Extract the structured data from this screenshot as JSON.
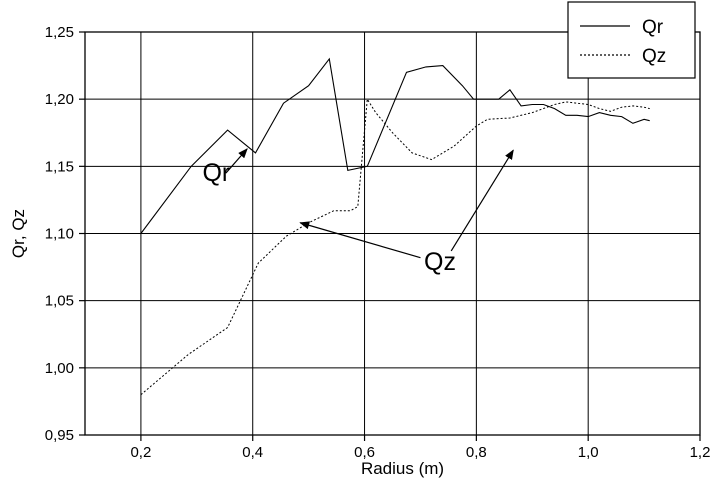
{
  "chart_data": {
    "type": "line",
    "title": "",
    "xlabel": "Radius (m)",
    "ylabel": "Qr, Qz",
    "xlim": [
      0.1,
      1.2
    ],
    "ylim": [
      0.95,
      1.25
    ],
    "grid": true,
    "legend_position": "top-right",
    "x_ticks": [
      "0,2",
      "0,4",
      "0,6",
      "0,8",
      "1,0",
      "1,2"
    ],
    "y_ticks": [
      "0,95",
      "1,00",
      "1,05",
      "1,10",
      "1,15",
      "1,20",
      "1,25"
    ],
    "series": [
      {
        "name": "Qr",
        "style": "solid",
        "x": [
          0.2,
          0.29,
          0.355,
          0.405,
          0.455,
          0.5,
          0.537,
          0.57,
          0.605,
          0.675,
          0.71,
          0.74,
          0.775,
          0.795,
          0.84,
          0.86,
          0.88,
          0.9,
          0.92,
          0.94,
          0.96,
          0.98,
          1.0,
          1.02,
          1.04,
          1.06,
          1.08,
          1.1,
          1.11
        ],
        "values": [
          1.1,
          1.15,
          1.177,
          1.16,
          1.197,
          1.21,
          1.23,
          1.147,
          1.15,
          1.22,
          1.224,
          1.225,
          1.21,
          1.2,
          1.2,
          1.207,
          1.195,
          1.196,
          1.196,
          1.193,
          1.188,
          1.188,
          1.187,
          1.19,
          1.188,
          1.187,
          1.182,
          1.185,
          1.184
        ]
      },
      {
        "name": "Qz",
        "style": "dotted",
        "x": [
          0.2,
          0.285,
          0.355,
          0.41,
          0.46,
          0.5,
          0.545,
          0.575,
          0.588,
          0.605,
          0.62,
          0.65,
          0.685,
          0.72,
          0.76,
          0.8,
          0.82,
          0.86,
          0.9,
          0.94,
          0.96,
          0.98,
          1.0,
          1.02,
          1.04,
          1.06,
          1.08,
          1.1,
          1.11
        ],
        "values": [
          0.98,
          1.01,
          1.03,
          1.078,
          1.098,
          1.108,
          1.117,
          1.117,
          1.12,
          1.2,
          1.19,
          1.175,
          1.16,
          1.155,
          1.165,
          1.18,
          1.185,
          1.186,
          1.19,
          1.196,
          1.198,
          1.197,
          1.196,
          1.193,
          1.191,
          1.194,
          1.195,
          1.194,
          1.193
        ]
      }
    ],
    "legend_items": [
      "Qr",
      "Qz"
    ],
    "annotations": [
      {
        "text": "Qr",
        "label_at": [
          0.335,
          1.139
        ],
        "arrow_from": [
          0.352,
          1.145
        ],
        "arrow_to": [
          0.39,
          1.163
        ]
      },
      {
        "text": "Qz",
        "label_at": [
          0.735,
          1.073
        ],
        "arrow_from": [
          0.7,
          1.082
        ],
        "arrow_to": [
          0.485,
          1.108
        ],
        "arrow2_from": [
          0.755,
          1.087
        ],
        "arrow2_to": [
          0.866,
          1.162
        ]
      }
    ]
  }
}
